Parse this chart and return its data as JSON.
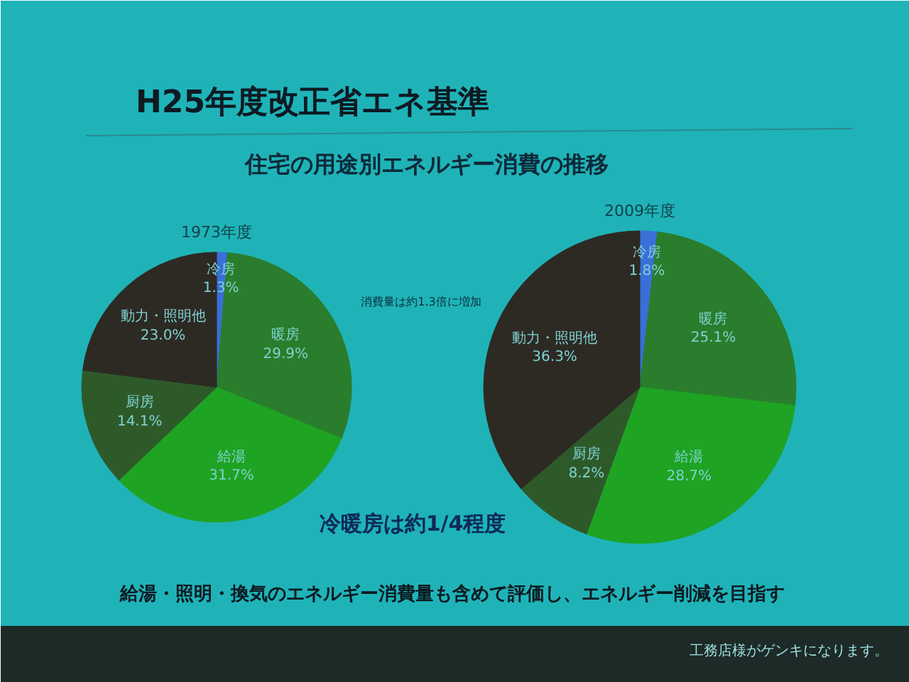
{
  "chart_data": [
    {
      "type": "pie",
      "title": "1973年度",
      "categories": [
        "冷房",
        "暖房",
        "給湯",
        "厨房",
        "動力・照明他"
      ],
      "values": [
        1.3,
        29.9,
        31.7,
        14.1,
        23.0
      ],
      "value_labels": [
        "1.3%",
        "29.9%",
        "31.7%",
        "14.1%",
        "23.0%"
      ],
      "colors": [
        "#3a6fd8",
        "#2a7d2c",
        "#1fa323",
        "#2e5a2a",
        "#2d2a24"
      ],
      "annotations": [
        "H25年度改正省エネ基準",
        "住宅の用途別エネルギー消費の推移",
        "消費量は約1.3倍に増加"
      ]
    },
    {
      "type": "pie",
      "title": "2009年度",
      "categories": [
        "冷房",
        "暖房",
        "給湯",
        "厨房",
        "動力・照明他"
      ],
      "values": [
        1.8,
        25.1,
        28.7,
        8.2,
        36.3
      ],
      "value_labels": [
        "1.8%",
        "25.1%",
        "28.7%",
        "8.2%",
        "36.3%"
      ],
      "colors": [
        "#3a6fd8",
        "#2a7d2c",
        "#1fa323",
        "#2e5a2a",
        "#2d2a24"
      ],
      "annotations": [
        "冷暖房は約1/4程度",
        "給湯・照明・換気のエネルギー消費量も含めて評価し、エネルギー削減を目指す",
        "工務店様がゲンキになります。"
      ]
    }
  ]
}
